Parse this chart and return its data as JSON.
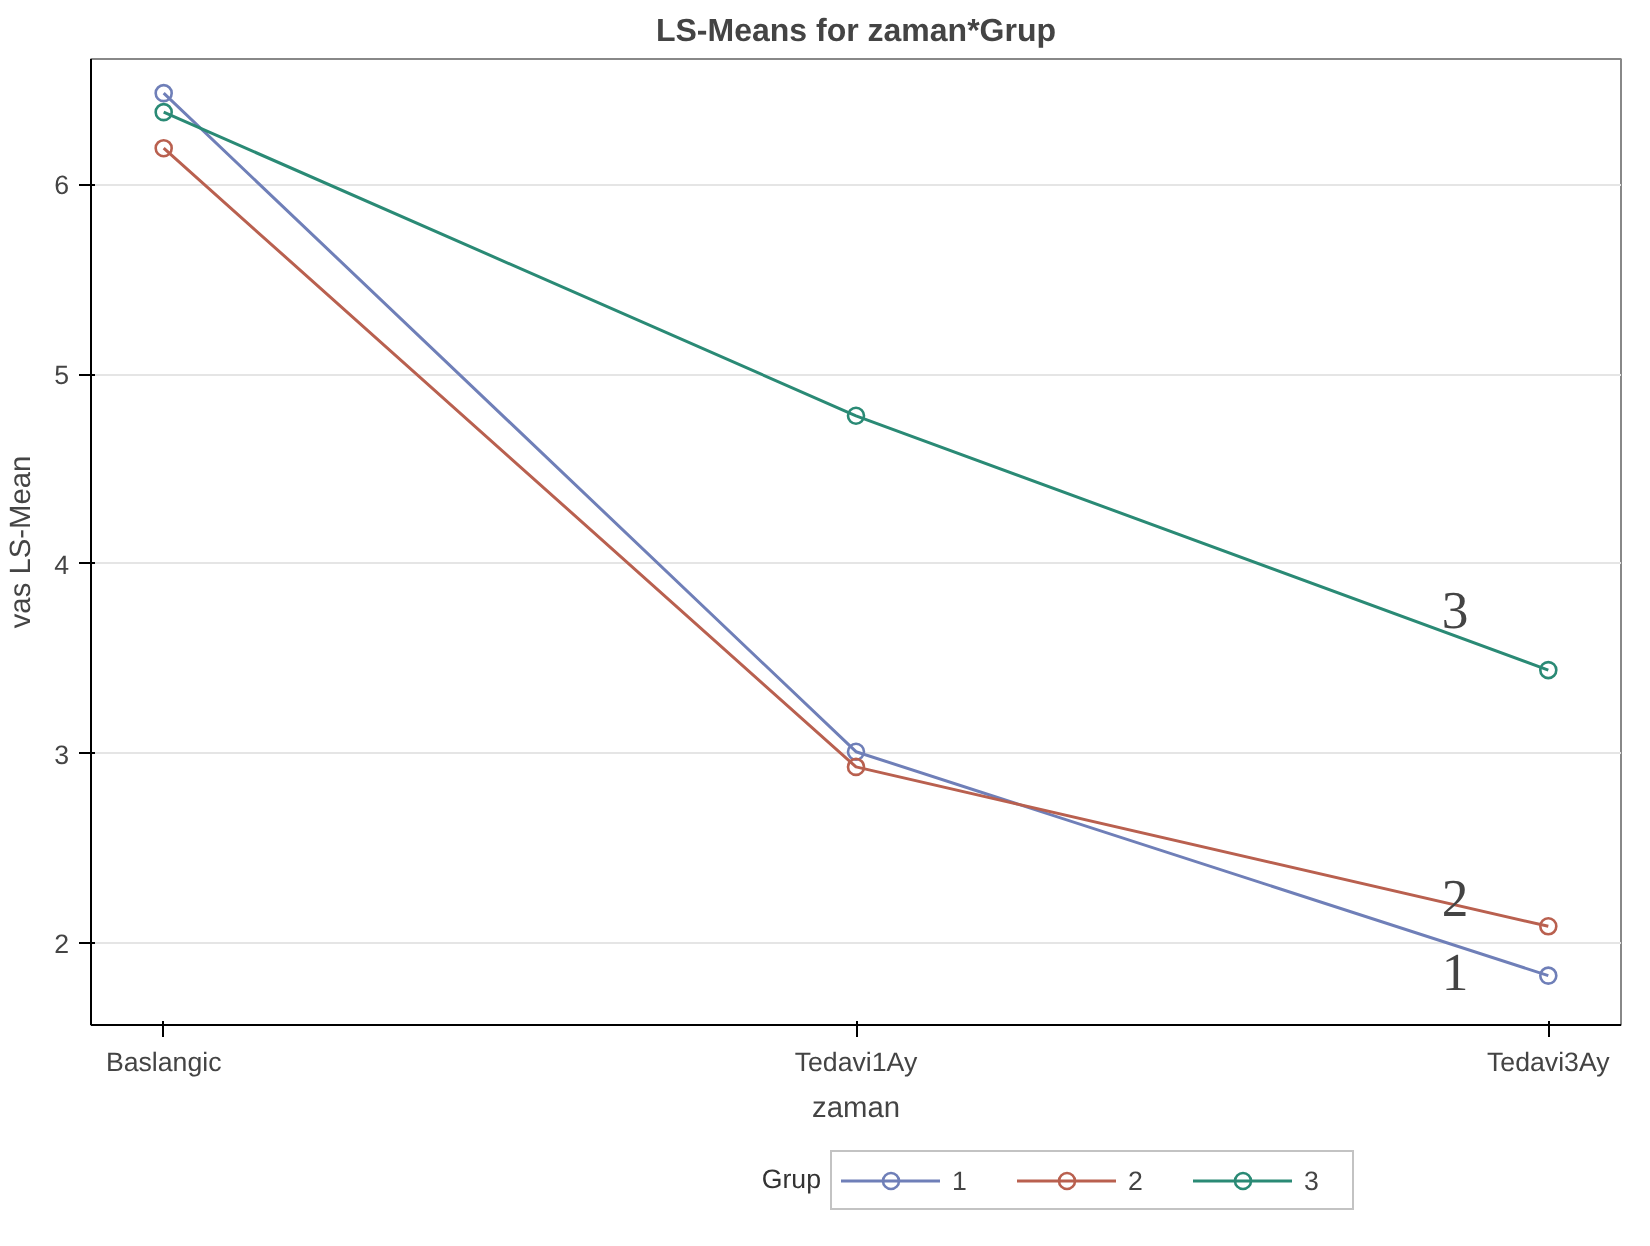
{
  "chart_data": {
    "type": "line",
    "title": "LS-Means for zaman*Grup",
    "xlabel": "zaman",
    "ylabel": "vas LS-Mean",
    "legend_title": "Grup",
    "categories": [
      "Baslangic",
      "Tedavi1Ay",
      "Tedavi3Ay"
    ],
    "series": [
      {
        "name": "1",
        "color": "#6f7fb8",
        "values": [
          6.48,
          3.01,
          1.83
        ]
      },
      {
        "name": "2",
        "color": "#b9604f",
        "values": [
          6.19,
          2.93,
          2.09
        ]
      },
      {
        "name": "3",
        "color": "#2a8a75",
        "values": [
          6.38,
          4.78,
          3.44
        ]
      }
    ],
    "ylim": [
      1.57,
      6.66
    ],
    "yticks": [
      2,
      3,
      4,
      5,
      6
    ],
    "grid": "y",
    "legend": "bottom",
    "marker": "circle",
    "line_style": "solid",
    "annotations": [
      "3",
      "2",
      "1"
    ]
  }
}
